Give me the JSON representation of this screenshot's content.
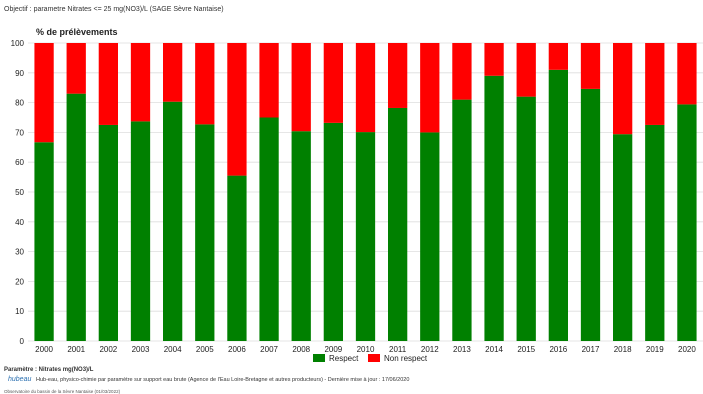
{
  "title": "Objectif : parametre Nitrates <= 25 mg(NO3)/L (SAGE Sèvre Nantaise)",
  "footer": {
    "param": "Paramètre : Nitrates mg(NO3)/L",
    "logo": "hubeau",
    "source": "Hub-eau, physico-chimie par paramètre sur support eau brute (Agence de l'Eau Loire-Bretagne et autres producteurs) - Dernière mise à jour : 17/06/2020",
    "observatoire": "Observatoire du bassin de la Sèvre Nantaise (01/03/2022)"
  },
  "chart_data": {
    "type": "bar",
    "stacked": true,
    "ylabel": "% de prélèvements",
    "ylim": [
      0,
      100
    ],
    "yticks": [
      0,
      10,
      20,
      30,
      40,
      50,
      60,
      70,
      80,
      90,
      100
    ],
    "grid": true,
    "legend_position": "bottom",
    "categories": [
      "2000",
      "2001",
      "2002",
      "2003",
      "2004",
      "2005",
      "2006",
      "2007",
      "2008",
      "2009",
      "2010",
      "2011",
      "2012",
      "2013",
      "2014",
      "2015",
      "2016",
      "2017",
      "2018",
      "2019",
      "2020"
    ],
    "series": [
      {
        "name": "Respect",
        "color": "#008000",
        "values": [
          66.7,
          83,
          72.5,
          73.7,
          80.3,
          72.7,
          55.5,
          75,
          70.4,
          73.2,
          70.1,
          78.2,
          70,
          81,
          89,
          82,
          91,
          84.6,
          69.4,
          72.5,
          79.4
        ]
      },
      {
        "name": "Non respect",
        "color": "#ff0000",
        "values": [
          33.3,
          17,
          27.5,
          26.3,
          19.7,
          27.3,
          44.5,
          25,
          29.6,
          26.8,
          29.9,
          21.8,
          30,
          19,
          11,
          18,
          9,
          15.4,
          30.6,
          27.5,
          20.6
        ]
      }
    ]
  }
}
